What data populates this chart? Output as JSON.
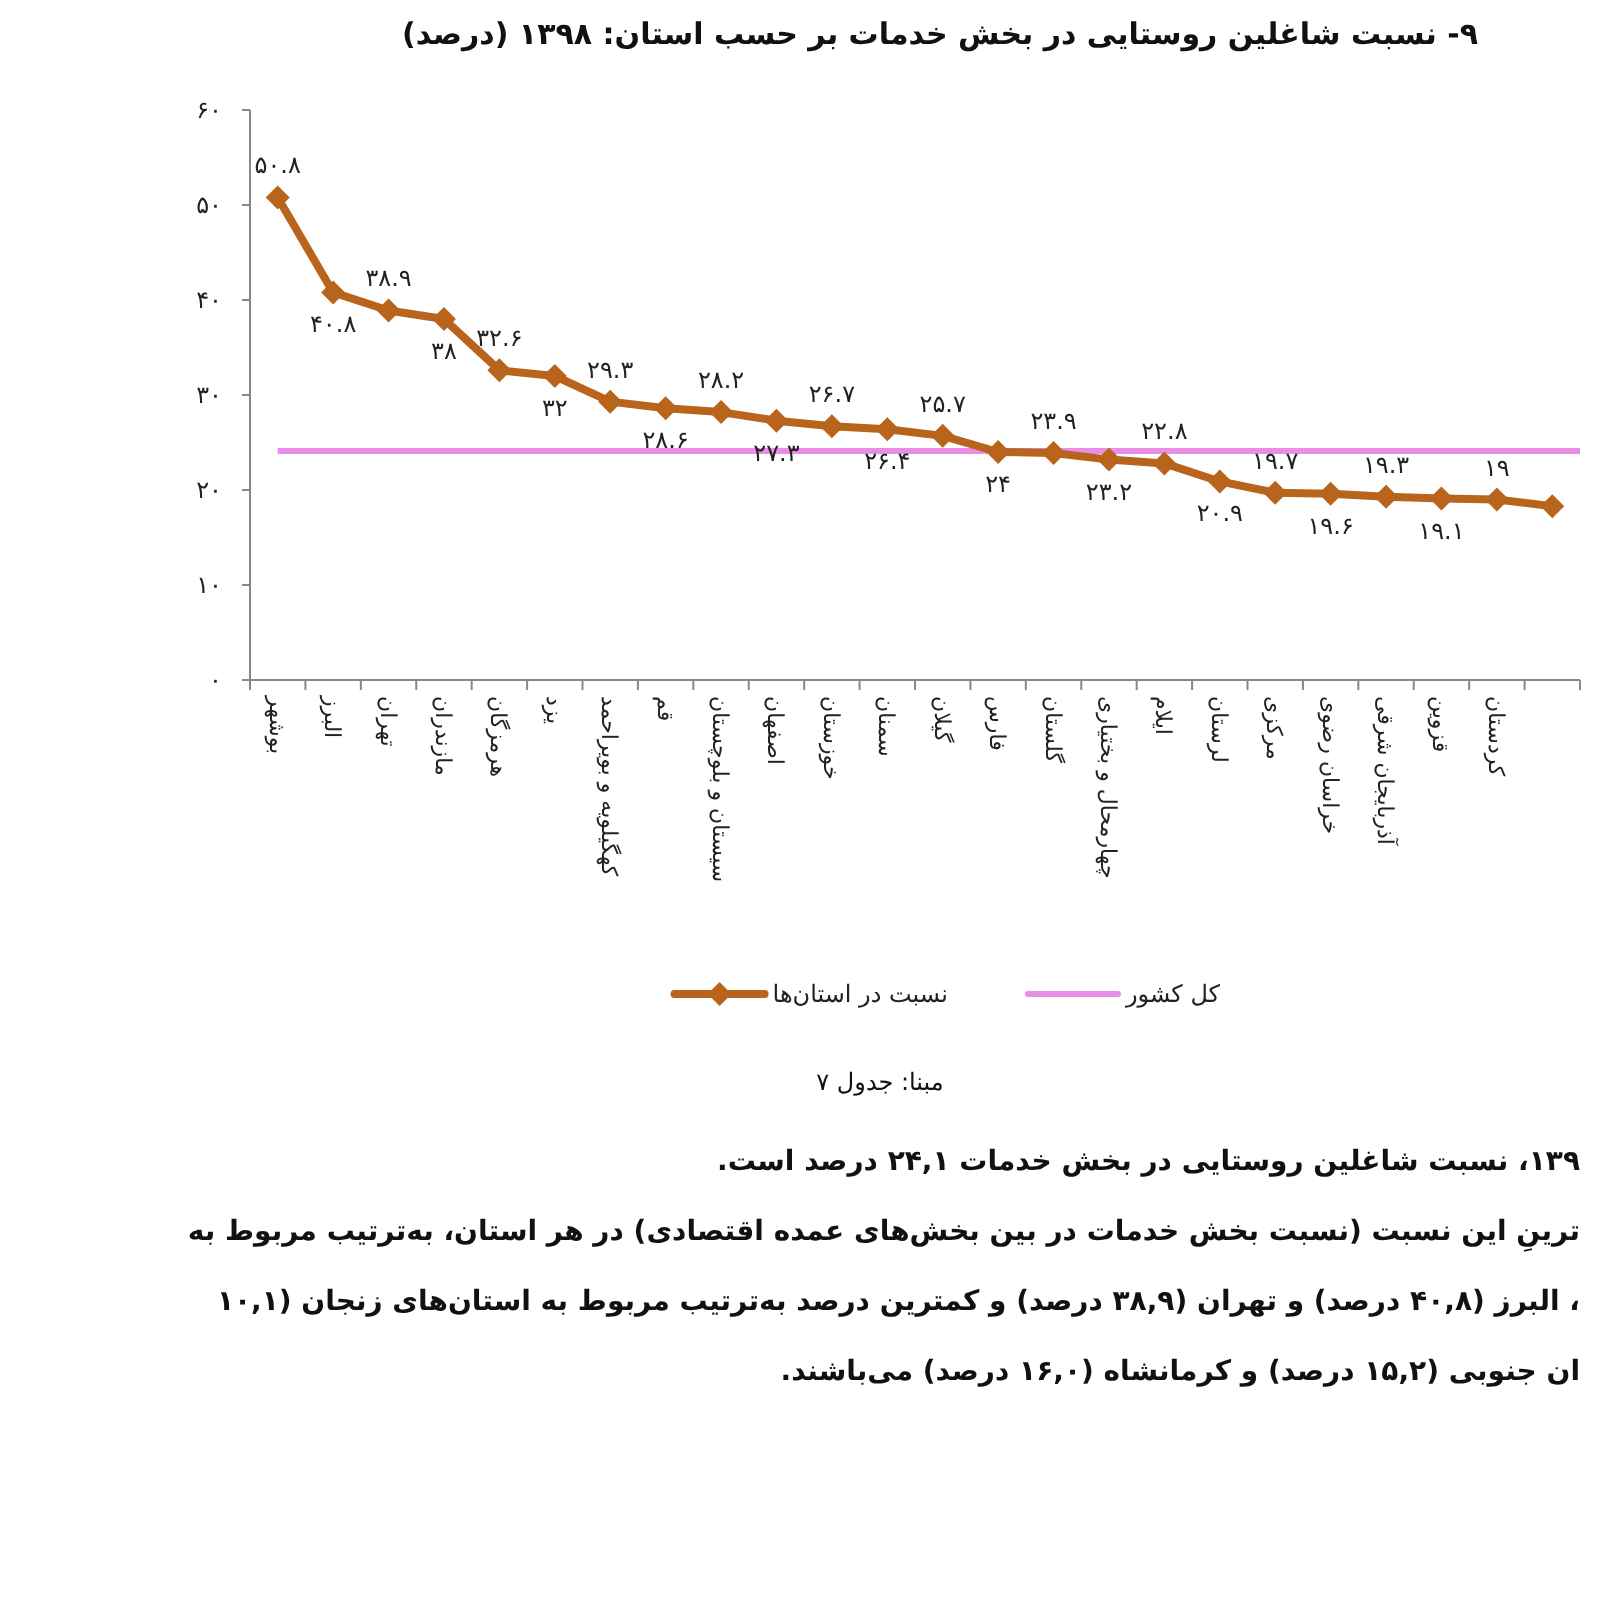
{
  "chart_data": {
    "type": "line",
    "title": "۹- نسبت شاغلین روستایی در بخش خدمات بر حسب استان: ۱۳۹۸ (درصد)",
    "categories": [
      "بوشهر",
      "البرز",
      "تهران",
      "مازندران",
      "هرمزگان",
      "یزد",
      "کهگیلویه و بویراحمد",
      "قم",
      "سیستان و بلوچستان",
      "اصفهان",
      "خوزستان",
      "سمنان",
      "گیلان",
      "فارس",
      "گلستان",
      "چهارمحال و بختیاری",
      "ایلام",
      "لرستان",
      "مرکزی",
      "خراسان رضوی",
      "آذربایجان شرقی",
      "قزوین",
      "کردستان",
      null
    ],
    "series": [
      {
        "name": "نسبت در استان‌ها",
        "color": "#b8641c",
        "values": [
          50.8,
          40.8,
          38.9,
          38,
          32.6,
          32,
          29.3,
          28.6,
          28.2,
          27.3,
          26.7,
          26.4,
          25.7,
          24,
          23.9,
          23.2,
          22.8,
          20.9,
          19.7,
          19.6,
          19.3,
          19.1,
          19,
          18.3
        ],
        "value_labels": [
          "۵۰.۸",
          "۴۰.۸",
          "۳۸.۹",
          "۳۸",
          "۳۲.۶",
          "۳۲",
          "۲۹.۳",
          "۲۸.۶",
          "۲۸.۲",
          "۲۷.۳",
          "۲۶.۷",
          "۲۶.۴",
          "۲۵.۷",
          "۲۴",
          "۲۳.۹",
          "۲۳.۲",
          "۲۲.۸",
          "۲۰.۹",
          "۱۹.۷",
          "۱۹.۶",
          "۱۹.۳",
          "۱۹.۱",
          "۱۹",
          null
        ]
      }
    ],
    "ref_lines": [
      {
        "axis": "y",
        "value": 24.1,
        "label": "کل کشور",
        "color": "#e88ee6"
      }
    ],
    "ylim": [
      0,
      60
    ],
    "yticks": [
      {
        "value": 0,
        "label": "۰"
      },
      {
        "value": 10,
        "label": "۱۰"
      },
      {
        "value": 20,
        "label": "۲۰"
      },
      {
        "value": 30,
        "label": "۳۰"
      },
      {
        "value": 40,
        "label": "۴۰"
      },
      {
        "value": 50,
        "label": "۵۰"
      },
      {
        "value": 60,
        "label": "۶۰"
      }
    ],
    "marker": "diamond",
    "legend": "bottom",
    "annotations": [
      "مبنا: جدول ۷",
      "۱۳۹، نسبت شاغلین روستایی در بخش خدمات ۲۴,۱ درصد است.",
      "ترینِ این نسبت (نسبت بخش خدمات در بین بخش‌های عمده اقتصادی) در هر استان، به‌ترتیب مربوط به",
      "، البرز (۴۰,۸ درصد) و تهران (۳۸,۹ درصد) و کمترین درصد به‌ترتیب مربوط به استان‌های زنجان (۱۰,۱",
      "ان جنوبی (۱۵,۲ درصد) و کرمانشاه (۱۶,۰ درصد) می‌باشند."
    ]
  }
}
